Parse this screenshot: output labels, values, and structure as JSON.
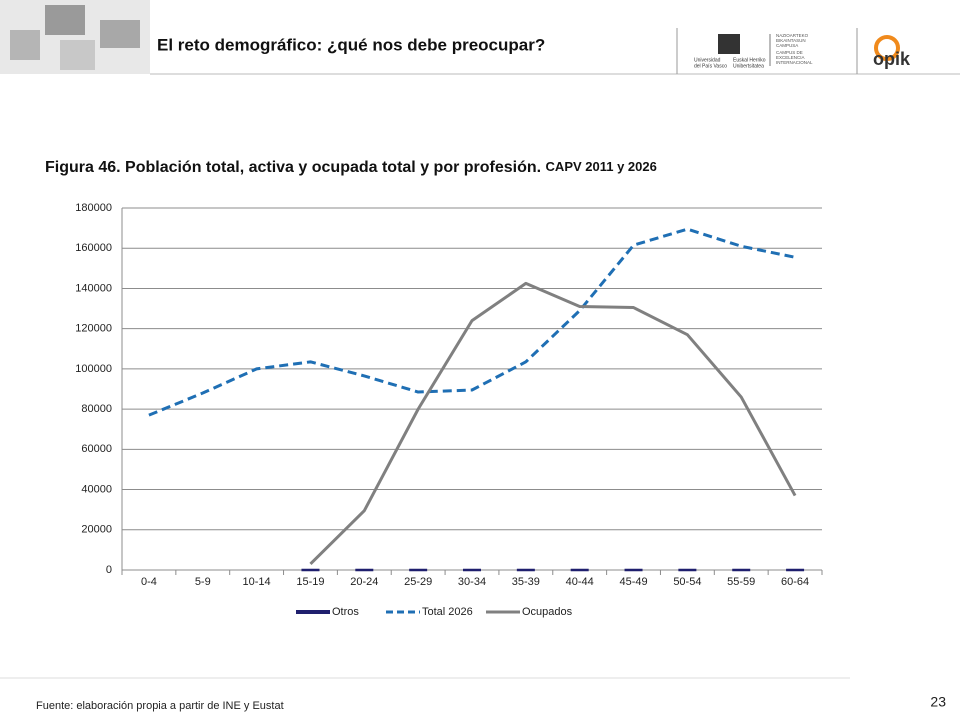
{
  "header": {
    "title": "El reto demográfico: ¿qué nos debe preocupar?",
    "upv_logo": [
      "Universidad",
      "del País Vasco",
      "Euskal Herriko",
      "Unibertsitatea"
    ],
    "campus_logo": [
      "NAZIOARTEKO",
      "BIKAINTASUN",
      "CAMPUSA",
      "CAMPUS DE",
      "EXCELENCIA",
      "INTERNACIONAL"
    ],
    "opik_logo": "opik"
  },
  "chart_data": {
    "type": "line",
    "title": "Figura 46. Población total, activa y ocupada total y por profesión.",
    "subtitle": "CAPV 2011 y 2026",
    "categories": [
      "0-4",
      "5-9",
      "10-14",
      "15-19",
      "20-24",
      "25-29",
      "30-34",
      "35-39",
      "40-44",
      "45-49",
      "50-54",
      "55-59",
      "60-64"
    ],
    "series": [
      {
        "name": "Otros",
        "color": "#1f1f6e",
        "values": [
          null,
          null,
          null,
          0,
          0,
          0,
          0,
          0,
          0,
          0,
          0,
          0,
          0
        ]
      },
      {
        "name": "Total 2026",
        "color": "#1f6fb4",
        "values": [
          77000,
          88000,
          100000,
          103500,
          96500,
          88500,
          89500,
          103500,
          129000,
          161500,
          169500,
          161000,
          155500
        ]
      },
      {
        "name": "Ocupados",
        "color": "#808080",
        "values": [
          null,
          null,
          null,
          3000,
          29500,
          80000,
          124000,
          142500,
          131000,
          130500,
          117000,
          86000,
          37000
        ]
      }
    ],
    "ylim": [
      0,
      180000
    ],
    "yticks": [
      0,
      20000,
      40000,
      60000,
      80000,
      100000,
      120000,
      140000,
      160000,
      180000
    ],
    "grid": true,
    "legend": "bottom"
  },
  "footer": {
    "source": "Fuente: elaboración propia a partir de INE y Eustat",
    "page": "23"
  }
}
